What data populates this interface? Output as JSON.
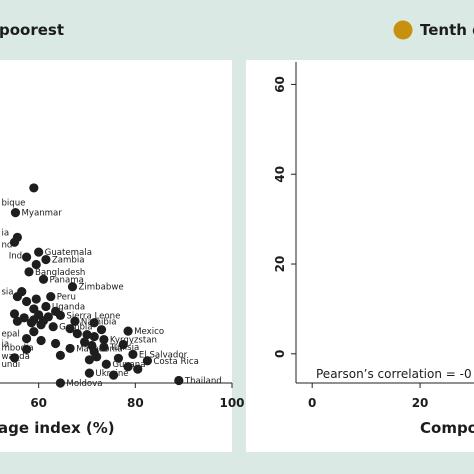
{
  "header": {
    "left_title": "poorest",
    "right_title": "Tenth d",
    "right_swatch_color": "#c8900f",
    "band_color": "#dbe9e4"
  },
  "left_panel": {
    "x_ticks": [
      "60",
      "80",
      "100"
    ],
    "xlabel": "age index (%)"
  },
  "right_panel": {
    "x_ticks": [
      "0",
      "20"
    ],
    "y_ticks": [
      "60",
      "40",
      "20",
      "0"
    ],
    "xlabel": "Compo",
    "correlation_text": "Pearson’s correlation = -0"
  },
  "chart_data": [
    {
      "type": "scatter",
      "xlabel": "age index (%)",
      "xlim": [
        52,
        100
      ],
      "x_ticks": [
        60,
        80,
        100
      ],
      "ylim": [
        0,
        65
      ],
      "grid": false,
      "marker_color": "#1e1e1e",
      "points": [
        {
          "label": "",
          "x": 59.0,
          "y": 39.5
        },
        {
          "label": "Myanmar",
          "x": 55.2,
          "y": 34.5
        },
        {
          "label": "",
          "x": 55.6,
          "y": 29.5
        },
        {
          "label": "",
          "x": 55.0,
          "y": 28.5
        },
        {
          "label": "Guatemala",
          "x": 60.0,
          "y": 26.5
        },
        {
          "label": "",
          "x": 57.5,
          "y": 25.5
        },
        {
          "label": "Zambia",
          "x": 61.5,
          "y": 25.0
        },
        {
          "label": "",
          "x": 59.5,
          "y": 24.0
        },
        {
          "label": "Bangladesh",
          "x": 58.0,
          "y": 22.5
        },
        {
          "label": "Panama",
          "x": 61.0,
          "y": 21.0
        },
        {
          "label": "Zimbabwe",
          "x": 67.0,
          "y": 19.5
        },
        {
          "label": "",
          "x": 56.5,
          "y": 18.5
        },
        {
          "label": "",
          "x": 55.6,
          "y": 17.5
        },
        {
          "label": "Peru",
          "x": 62.5,
          "y": 17.5
        },
        {
          "label": "",
          "x": 59.5,
          "y": 17.0
        },
        {
          "label": "",
          "x": 57.5,
          "y": 16.5
        },
        {
          "label": "Uganda",
          "x": 61.5,
          "y": 15.5
        },
        {
          "label": "",
          "x": 59.0,
          "y": 15.0
        },
        {
          "label": "",
          "x": 63.5,
          "y": 14.5
        },
        {
          "label": "",
          "x": 55.0,
          "y": 14.0
        },
        {
          "label": "",
          "x": 60.0,
          "y": 13.8
        },
        {
          "label": "Sierra Leone",
          "x": 64.5,
          "y": 13.7
        },
        {
          "label": "",
          "x": 62.0,
          "y": 13.4
        },
        {
          "label": "",
          "x": 57.0,
          "y": 13.2
        },
        {
          "label": "",
          "x": 59.0,
          "y": 12.8
        },
        {
          "label": "Namibia",
          "x": 67.5,
          "y": 12.5
        },
        {
          "label": "",
          "x": 61.0,
          "y": 12.6
        },
        {
          "label": "",
          "x": 55.6,
          "y": 12.5
        },
        {
          "label": "",
          "x": 58.5,
          "y": 12.2
        },
        {
          "label": "",
          "x": 71.5,
          "y": 12.2
        },
        {
          "label": "",
          "x": 60.5,
          "y": 11.8
        },
        {
          "label": "Gambia",
          "x": 63.0,
          "y": 11.4
        },
        {
          "label": "",
          "x": 66.5,
          "y": 11.0
        },
        {
          "label": "",
          "x": 73.0,
          "y": 10.8
        },
        {
          "label": "Mexico",
          "x": 78.5,
          "y": 10.5
        },
        {
          "label": "",
          "x": 59.0,
          "y": 10.4
        },
        {
          "label": "",
          "x": 68.0,
          "y": 10.0
        },
        {
          "label": "",
          "x": 70.0,
          "y": 9.8
        },
        {
          "label": "",
          "x": 71.5,
          "y": 9.4
        },
        {
          "label": "",
          "x": 57.5,
          "y": 9.0
        },
        {
          "label": "Kyrgyzstan",
          "x": 73.5,
          "y": 8.8
        },
        {
          "label": "",
          "x": 60.5,
          "y": 8.6
        },
        {
          "label": "",
          "x": 69.5,
          "y": 8.3
        },
        {
          "label": "",
          "x": 63.5,
          "y": 8.0
        },
        {
          "label": "",
          "x": 77.5,
          "y": 7.8
        },
        {
          "label": "",
          "x": 71.0,
          "y": 7.6
        },
        {
          "label": "Tunisia",
          "x": 73.5,
          "y": 7.3
        },
        {
          "label": "Macedonia",
          "x": 66.5,
          "y": 7.0
        },
        {
          "label": "",
          "x": 57.5,
          "y": 6.8
        },
        {
          "label": "",
          "x": 71.5,
          "y": 6.3
        },
        {
          "label": "El Salvador",
          "x": 79.5,
          "y": 5.8
        },
        {
          "label": "",
          "x": 64.5,
          "y": 5.6
        },
        {
          "label": "",
          "x": 72.0,
          "y": 5.3
        },
        {
          "label": "",
          "x": 55.0,
          "y": 5.1
        },
        {
          "label": "",
          "x": 76.5,
          "y": 5.0
        },
        {
          "label": "",
          "x": 70.5,
          "y": 4.7
        },
        {
          "label": "Costa Rica",
          "x": 82.5,
          "y": 4.5
        },
        {
          "label": "Guyana",
          "x": 74.0,
          "y": 3.8
        },
        {
          "label": "",
          "x": 78.5,
          "y": 3.3
        },
        {
          "label": "",
          "x": 80.5,
          "y": 2.8
        },
        {
          "label": "Ukraine",
          "x": 70.5,
          "y": 2.0
        },
        {
          "label": "",
          "x": 75.5,
          "y": 1.6
        },
        {
          "label": "Thailand",
          "x": 89.0,
          "y": 0.5
        },
        {
          "label": "Moldova",
          "x": 64.5,
          "y": 0.0
        }
      ],
      "edge_labels": [
        {
          "text": "bique",
          "x": 52.3,
          "y": 36.5
        },
        {
          "text": "ia",
          "x": 52.3,
          "y": 30.5
        },
        {
          "text": "nd",
          "x": 52.3,
          "y": 28.0
        },
        {
          "text": "Ind",
          "x": 53.8,
          "y": 25.8
        },
        {
          "text": "sia",
          "x": 52.3,
          "y": 18.5
        },
        {
          "text": "epal",
          "x": 52.3,
          "y": 10.0
        },
        {
          "text": "ia",
          "x": 52.3,
          "y": 8.0
        },
        {
          "text": "mbodia",
          "x": 52.3,
          "y": 7.2
        },
        {
          "text": "wanda",
          "x": 52.3,
          "y": 5.5
        },
        {
          "text": "undi",
          "x": 52.3,
          "y": 3.8
        }
      ]
    },
    {
      "type": "scatter",
      "xlabel": "Compo",
      "xlim": [
        -3,
        30
      ],
      "x_ticks": [
        0,
        20
      ],
      "ylim": [
        -6.5,
        65
      ],
      "y_ticks": [
        0,
        20,
        40,
        60
      ],
      "grid": false,
      "points": [],
      "annotation": "Pearson’s correlation = -0"
    }
  ]
}
